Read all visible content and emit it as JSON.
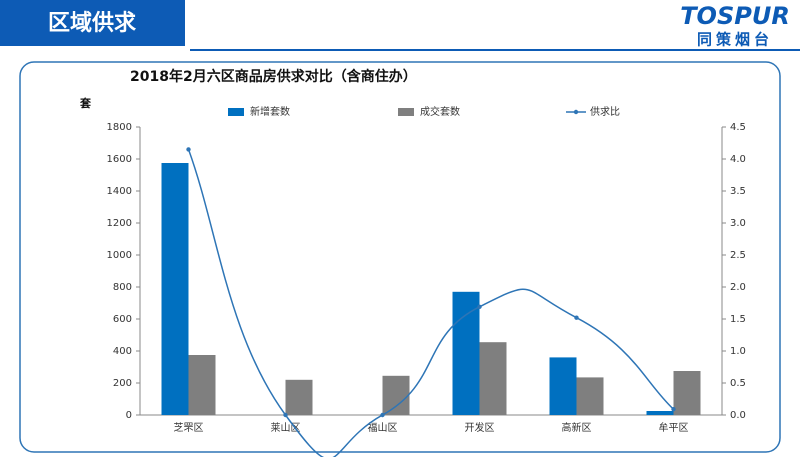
{
  "header": {
    "title": "区域供求",
    "logo": "TOSPUR",
    "logo_sub": "同策烟台"
  },
  "chart_data": {
    "type": "bar",
    "title": "2018年2月六区商品房供求对比（含商住办）",
    "y_label": "套",
    "categories": [
      "芝罘区",
      "莱山区",
      "福山区",
      "开发区",
      "高新区",
      "牟平区"
    ],
    "series": [
      {
        "name": "新增套数",
        "color": "#0070c0",
        "type": "bar",
        "values": [
          1575,
          0,
          0,
          770,
          360,
          25
        ]
      },
      {
        "name": "成交套数",
        "color": "#7f7f7f",
        "type": "bar",
        "values": [
          375,
          220,
          245,
          455,
          235,
          275
        ]
      },
      {
        "name": "供求比",
        "color": "#2e75b6",
        "type": "line",
        "axis": "y2",
        "values": [
          4.15,
          0,
          0,
          1.69,
          1.52,
          0.09
        ]
      }
    ],
    "ylim": [
      0,
      1800
    ],
    "yticks": [
      0,
      200,
      400,
      600,
      800,
      1000,
      1200,
      1400,
      1600,
      1800
    ],
    "y2lim": [
      0,
      4.5
    ],
    "y2ticks": [
      {
        "value": 0,
        "label": "0.0"
      },
      0.5,
      {
        "value": 1,
        "label": "1.0"
      },
      1.5,
      {
        "value": 2,
        "label": "2.0"
      },
      2.5,
      {
        "value": 3,
        "label": "3.0"
      },
      3.5,
      {
        "value": 4,
        "label": "4.0"
      },
      4.5
    ]
  }
}
